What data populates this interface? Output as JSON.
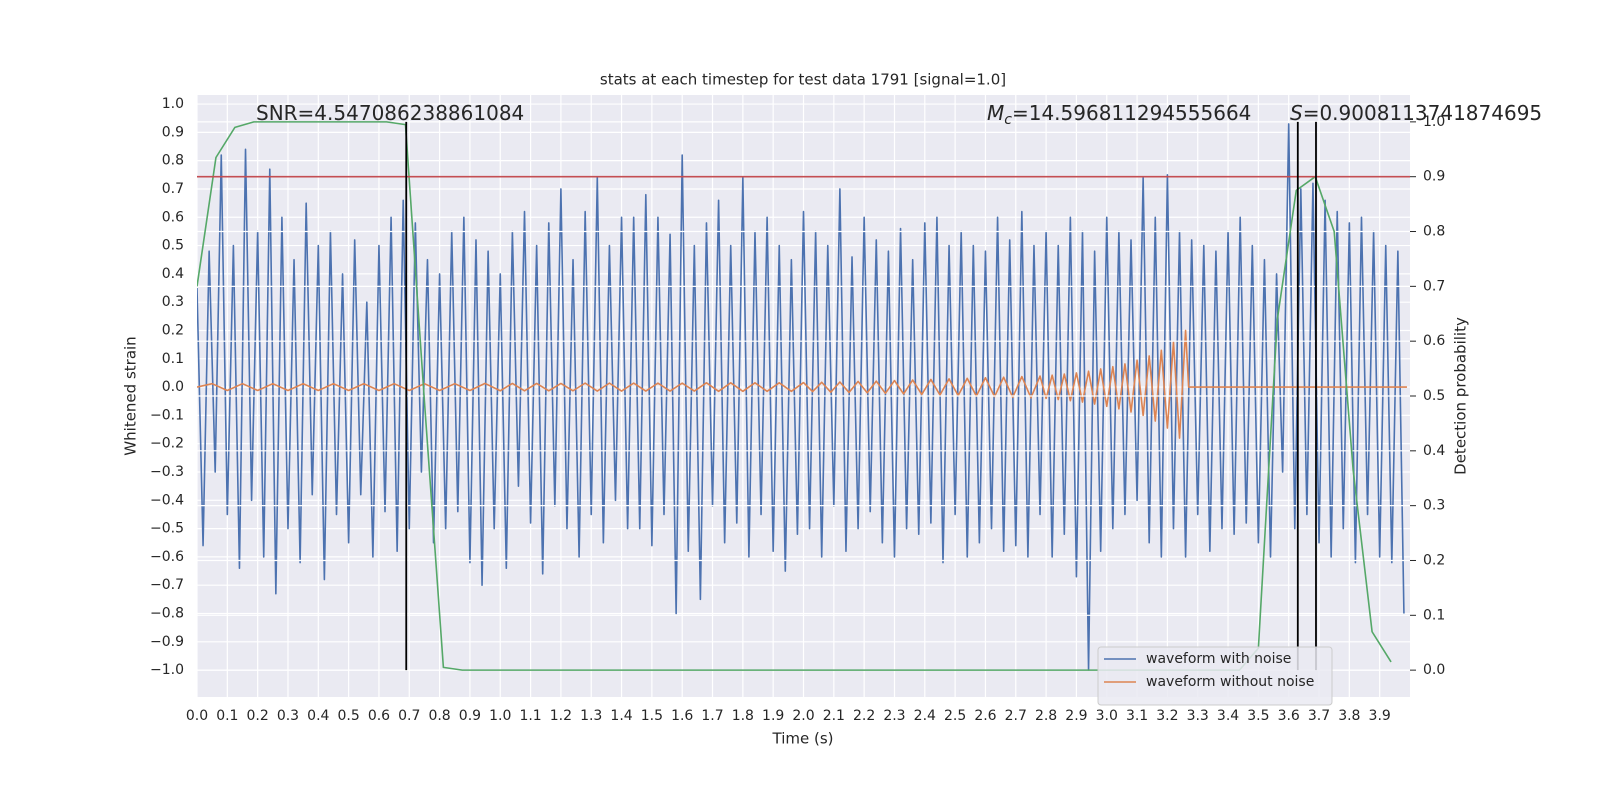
{
  "chart_data": {
    "type": "line",
    "title": "stats at each timestep for test data 1791 [signal=1.0]",
    "xlabel": "Time (s)",
    "ylabel": "Whitened strain",
    "y2label": "Detection probability",
    "xlim": [
      0,
      4.0
    ],
    "ylim": [
      -1.095,
      1.032
    ],
    "y2lim": [
      -0.049,
      1.049
    ],
    "grid": true,
    "legend": "lower right",
    "xticks": [
      {
        "value": 0,
        "label": "0.0"
      },
      {
        "value": 0.1,
        "label": "0.1"
      },
      {
        "value": 0.2,
        "label": "0.2"
      },
      {
        "value": 0.3,
        "label": "0.3"
      },
      {
        "value": 0.4,
        "label": "0.4"
      },
      {
        "value": 0.5,
        "label": "0.5"
      },
      {
        "value": 0.6,
        "label": "0.6"
      },
      {
        "value": 0.7,
        "label": "0.7"
      },
      {
        "value": 0.8,
        "label": "0.8"
      },
      {
        "value": 0.9,
        "label": "0.9"
      },
      {
        "value": 1,
        "label": "1.0"
      },
      {
        "value": 1.1,
        "label": "1.1"
      },
      {
        "value": 1.2,
        "label": "1.2"
      },
      {
        "value": 1.3,
        "label": "1.3"
      },
      {
        "value": 1.4,
        "label": "1.4"
      },
      {
        "value": 1.5,
        "label": "1.5"
      },
      {
        "value": 1.6,
        "label": "1.6"
      },
      {
        "value": 1.7,
        "label": "1.7"
      },
      {
        "value": 1.8,
        "label": "1.8"
      },
      {
        "value": 1.9,
        "label": "1.9"
      },
      {
        "value": 2,
        "label": "2.0"
      },
      {
        "value": 2.1,
        "label": "2.1"
      },
      {
        "value": 2.2,
        "label": "2.2"
      },
      {
        "value": 2.3,
        "label": "2.3"
      },
      {
        "value": 2.4,
        "label": "2.4"
      },
      {
        "value": 2.5,
        "label": "2.5"
      },
      {
        "value": 2.6,
        "label": "2.6"
      },
      {
        "value": 2.7,
        "label": "2.7"
      },
      {
        "value": 2.8,
        "label": "2.8"
      },
      {
        "value": 2.9,
        "label": "2.9"
      },
      {
        "value": 3,
        "label": "3.0"
      },
      {
        "value": 3.1,
        "label": "3.1"
      },
      {
        "value": 3.2,
        "label": "3.2"
      },
      {
        "value": 3.3,
        "label": "3.3"
      },
      {
        "value": 3.4,
        "label": "3.4"
      },
      {
        "value": 3.5,
        "label": "3.5"
      },
      {
        "value": 3.6,
        "label": "3.6"
      },
      {
        "value": 3.7,
        "label": "3.7"
      },
      {
        "value": 3.8,
        "label": "3.8"
      },
      {
        "value": 3.9,
        "label": "3.9"
      }
    ],
    "yticks": [
      {
        "value": -1,
        "label": "−1.0"
      },
      {
        "value": -0.9,
        "label": "−0.9"
      },
      {
        "value": -0.8,
        "label": "−0.8"
      },
      {
        "value": -0.7,
        "label": "−0.7"
      },
      {
        "value": -0.6,
        "label": "−0.6"
      },
      {
        "value": -0.5,
        "label": "−0.5"
      },
      {
        "value": -0.4,
        "label": "−0.4"
      },
      {
        "value": -0.3,
        "label": "−0.3"
      },
      {
        "value": -0.2,
        "label": "−0.2"
      },
      {
        "value": -0.1,
        "label": "−0.1"
      },
      {
        "value": 0,
        "label": "0.0"
      },
      {
        "value": 0.1,
        "label": "0.1"
      },
      {
        "value": 0.2,
        "label": "0.2"
      },
      {
        "value": 0.3,
        "label": "0.3"
      },
      {
        "value": 0.4,
        "label": "0.4"
      },
      {
        "value": 0.5,
        "label": "0.5"
      },
      {
        "value": 0.6,
        "label": "0.6"
      },
      {
        "value": 0.7,
        "label": "0.7"
      },
      {
        "value": 0.8,
        "label": "0.8"
      },
      {
        "value": 0.9,
        "label": "0.9"
      },
      {
        "value": 1,
        "label": "1.0"
      }
    ],
    "y2ticks": [
      {
        "value": 0,
        "label": "0.0"
      },
      {
        "value": 0.1,
        "label": "0.1"
      },
      {
        "value": 0.2,
        "label": "0.2"
      },
      {
        "value": 0.3,
        "label": "0.3"
      },
      {
        "value": 0.4,
        "label": "0.4"
      },
      {
        "value": 0.5,
        "label": "0.5"
      },
      {
        "value": 0.6,
        "label": "0.6"
      },
      {
        "value": 0.7,
        "label": "0.7"
      },
      {
        "value": 0.8,
        "label": "0.8"
      },
      {
        "value": 0.9,
        "label": "0.9"
      },
      {
        "value": 1,
        "label": "1.0"
      }
    ],
    "series": [
      {
        "name": "waveform with noise",
        "color": "#4c72b0",
        "x": [
          0,
          0.02,
          0.04,
          0.06,
          0.08,
          0.1,
          0.12,
          0.14,
          0.16,
          0.18,
          0.2,
          0.22,
          0.24,
          0.26,
          0.28,
          0.3,
          0.32,
          0.34,
          0.36,
          0.38,
          0.4,
          0.42,
          0.44,
          0.46,
          0.48,
          0.5,
          0.52,
          0.54,
          0.56,
          0.58,
          0.6,
          0.62,
          0.64,
          0.66,
          0.68,
          0.7,
          0.72,
          0.74,
          0.76,
          0.78,
          0.8,
          0.82,
          0.84,
          0.86,
          0.88,
          0.9,
          0.92,
          0.94,
          0.96,
          0.98,
          1,
          1.02,
          1.04,
          1.06,
          1.08,
          1.1,
          1.12,
          1.14,
          1.16,
          1.18,
          1.2,
          1.22,
          1.24,
          1.26,
          1.28,
          1.3,
          1.32,
          1.34,
          1.36,
          1.38,
          1.4,
          1.42,
          1.44,
          1.46,
          1.48,
          1.5,
          1.52,
          1.54,
          1.56,
          1.58,
          1.6,
          1.62,
          1.64,
          1.66,
          1.68,
          1.7,
          1.72,
          1.74,
          1.76,
          1.78,
          1.8,
          1.82,
          1.84,
          1.86,
          1.88,
          1.9,
          1.92,
          1.94,
          1.96,
          1.98,
          2,
          2.02,
          2.04,
          2.06,
          2.08,
          2.1,
          2.12,
          2.14,
          2.16,
          2.18,
          2.2,
          2.22,
          2.24,
          2.26,
          2.28,
          2.3,
          2.32,
          2.34,
          2.36,
          2.38,
          2.4,
          2.42,
          2.44,
          2.46,
          2.48,
          2.5,
          2.52,
          2.54,
          2.56,
          2.58,
          2.6,
          2.62,
          2.64,
          2.66,
          2.68,
          2.7,
          2.72,
          2.74,
          2.76,
          2.78,
          2.8,
          2.82,
          2.84,
          2.86,
          2.88,
          2.9,
          2.92,
          2.94,
          2.96,
          2.98,
          3,
          3.02,
          3.04,
          3.06,
          3.08,
          3.1,
          3.12,
          3.14,
          3.16,
          3.18,
          3.2,
          3.22,
          3.24,
          3.26,
          3.28,
          3.3,
          3.32,
          3.34,
          3.36,
          3.38,
          3.4,
          3.42,
          3.44,
          3.46,
          3.48,
          3.5,
          3.52,
          3.54,
          3.56,
          3.58,
          3.6,
          3.62,
          3.64,
          3.66,
          3.68,
          3.7,
          3.72,
          3.74,
          3.76,
          3.78,
          3.8,
          3.82,
          3.84,
          3.86,
          3.88,
          3.9,
          3.92,
          3.94,
          3.96,
          3.98
        ],
        "values": [
          0.35,
          -0.56,
          0.48,
          -0.3,
          0.82,
          -0.45,
          0.5,
          -0.64,
          0.84,
          -0.4,
          0.55,
          -0.6,
          0.77,
          -0.73,
          0.6,
          -0.5,
          0.45,
          -0.62,
          0.65,
          -0.38,
          0.5,
          -0.68,
          0.55,
          -0.45,
          0.4,
          -0.55,
          0.52,
          -0.38,
          0.3,
          -0.6,
          0.5,
          -0.44,
          0.6,
          -0.58,
          0.66,
          -0.5,
          0.58,
          -0.3,
          0.45,
          -0.55,
          0.4,
          -0.5,
          0.55,
          -0.44,
          0.6,
          -0.62,
          0.52,
          -0.7,
          0.48,
          -0.5,
          0.4,
          -0.64,
          0.55,
          -0.35,
          0.62,
          -0.48,
          0.5,
          -0.66,
          0.58,
          -0.42,
          0.7,
          -0.5,
          0.45,
          -0.6,
          0.62,
          -0.45,
          0.74,
          -0.55,
          0.5,
          -0.4,
          0.6,
          -0.5,
          0.6,
          -0.5,
          0.68,
          -0.56,
          0.6,
          -0.45,
          0.54,
          -0.8,
          0.82,
          -0.58,
          0.5,
          -0.75,
          0.58,
          -0.42,
          0.66,
          -0.55,
          0.5,
          -0.48,
          0.74,
          -0.6,
          0.55,
          -0.45,
          0.6,
          -0.58,
          0.5,
          -0.65,
          0.45,
          -0.52,
          0.62,
          -0.5,
          0.55,
          -0.6,
          0.5,
          -0.42,
          0.7,
          -0.58,
          0.46,
          -0.5,
          0.6,
          -0.44,
          0.52,
          -0.55,
          0.48,
          -0.6,
          0.56,
          -0.5,
          0.45,
          -0.52,
          0.58,
          -0.48,
          0.6,
          -0.62,
          0.5,
          -0.45,
          0.55,
          -0.6,
          0.5,
          -0.55,
          0.48,
          -0.5,
          0.6,
          -0.58,
          0.52,
          -0.56,
          0.62,
          -0.6,
          0.5,
          -0.45,
          0.55,
          -0.6,
          0.5,
          -0.52,
          0.6,
          -0.67,
          0.55,
          -1.0,
          0.48,
          -0.58,
          0.6,
          -0.5,
          0.55,
          -0.45,
          0.52,
          -0.4,
          0.74,
          -0.55,
          0.6,
          -0.6,
          0.75,
          -0.5,
          0.55,
          -0.6,
          0.52,
          -0.45,
          0.5,
          -0.58,
          0.48,
          -0.5,
          0.55,
          -0.52,
          0.6,
          -0.48,
          0.5,
          -0.55,
          0.45,
          -0.6,
          0.4,
          -0.3,
          0.93,
          -0.5,
          0.7,
          -0.45,
          0.72,
          -0.55,
          0.66,
          -0.6,
          0.62,
          -0.5,
          0.58,
          -0.62,
          0.6,
          -0.45,
          0.55,
          -0.6,
          0.5,
          -0.62,
          0.48,
          -0.8
        ]
      },
      {
        "name": "waveform without noise",
        "color": "#dd8452",
        "x": [
          0,
          0.05,
          0.1,
          0.15,
          0.2,
          0.25,
          0.3,
          0.35,
          0.4,
          0.45,
          0.5,
          0.55,
          0.6,
          0.65,
          0.7,
          0.75,
          0.8,
          0.85,
          0.9,
          0.95,
          1,
          1.04,
          1.08,
          1.12,
          1.16,
          1.2,
          1.24,
          1.28,
          1.32,
          1.36,
          1.4,
          1.44,
          1.48,
          1.52,
          1.56,
          1.6,
          1.64,
          1.68,
          1.72,
          1.76,
          1.8,
          1.84,
          1.88,
          1.92,
          1.96,
          2,
          2.03,
          2.06,
          2.09,
          2.12,
          2.15,
          2.18,
          2.21,
          2.24,
          2.27,
          2.3,
          2.33,
          2.36,
          2.39,
          2.42,
          2.45,
          2.48,
          2.51,
          2.54,
          2.57,
          2.6,
          2.63,
          2.66,
          2.69,
          2.72,
          2.75,
          2.78,
          2.8,
          2.82,
          2.84,
          2.86,
          2.88,
          2.9,
          2.92,
          2.94,
          2.96,
          2.98,
          3,
          3.02,
          3.04,
          3.06,
          3.08,
          3.1,
          3.12,
          3.14,
          3.16,
          3.18,
          3.2,
          3.22,
          3.24,
          3.26,
          3.27,
          3.99
        ],
        "values": [
          0,
          0.012,
          -0.012,
          0.012,
          -0.012,
          0.012,
          -0.012,
          0.012,
          -0.012,
          0.012,
          -0.012,
          0.012,
          -0.012,
          0.012,
          -0.012,
          0.012,
          -0.012,
          0.012,
          -0.012,
          0.013,
          -0.013,
          0.013,
          -0.013,
          0.013,
          -0.013,
          0.013,
          -0.013,
          0.014,
          -0.014,
          0.014,
          -0.014,
          0.014,
          -0.014,
          0.014,
          -0.014,
          0.014,
          -0.014,
          0.015,
          -0.015,
          0.015,
          -0.015,
          0.015,
          -0.015,
          0.015,
          -0.015,
          0.016,
          -0.016,
          0.017,
          -0.018,
          0.018,
          -0.019,
          0.02,
          -0.02,
          0.021,
          -0.022,
          0.023,
          -0.024,
          0.025,
          -0.026,
          0.027,
          -0.028,
          0.029,
          -0.03,
          0.031,
          -0.032,
          0.033,
          -0.034,
          0.035,
          -0.036,
          0.037,
          -0.038,
          0.039,
          -0.04,
          0.042,
          -0.044,
          0.046,
          -0.048,
          0.05,
          -0.053,
          0.056,
          -0.06,
          0.064,
          -0.068,
          0.072,
          -0.077,
          0.082,
          -0.088,
          0.095,
          -0.1,
          0.11,
          -0.12,
          0.13,
          -0.145,
          0.16,
          -0.18,
          0.2,
          0,
          0
        ]
      },
      {
        "color": "#55a868",
        "axis": "y2",
        "x": [
          0,
          0.0625,
          0.125,
          0.1875,
          0.25,
          0.3125,
          0.375,
          0.4375,
          0.5,
          0.5625,
          0.625,
          0.6875,
          0.75,
          0.8125,
          0.875,
          0.9375,
          1,
          1.0625,
          1.125,
          1.1875,
          1.25,
          1.3125,
          1.375,
          1.4375,
          1.5,
          1.5625,
          1.625,
          1.6875,
          1.75,
          1.8125,
          1.875,
          1.9375,
          2,
          2.0625,
          2.125,
          2.1875,
          2.25,
          2.3125,
          2.375,
          2.4375,
          2.5,
          2.5625,
          2.625,
          2.6875,
          2.75,
          2.8125,
          2.875,
          2.9375,
          3,
          3.0625,
          3.125,
          3.1875,
          3.25,
          3.3125,
          3.375,
          3.4375,
          3.5,
          3.5625,
          3.625,
          3.6875,
          3.75,
          3.8125,
          3.875,
          3.9375
        ],
        "values": [
          0.7,
          0.935,
          0.99,
          1.0,
          1.0,
          1.0,
          1.0,
          1.0,
          1.0,
          1.0,
          1.0,
          0.995,
          0.49,
          0.005,
          0,
          0,
          0,
          0,
          0,
          0,
          0,
          0,
          0,
          0,
          0,
          0,
          0,
          0,
          0,
          0,
          0,
          0,
          0,
          0,
          0,
          0,
          0,
          0,
          0,
          0,
          0,
          0,
          0,
          0,
          0,
          0,
          0,
          0,
          0,
          0,
          0,
          0,
          0,
          0,
          0,
          0,
          0.04,
          0.64,
          0.875,
          0.9,
          0.8,
          0.365,
          0.07,
          0.015
        ]
      }
    ],
    "hlines": [
      {
        "value": 0.9,
        "axis": "y2",
        "color": "#c44e52"
      }
    ],
    "vlines": {
      "x": [
        0.69,
        3.63,
        3.69
      ],
      "ymin": 0,
      "ymax": 1,
      "axis": "y2",
      "color": "#000000"
    },
    "annotations": [
      {
        "text": "SNR=4.547086238861084"
      },
      {
        "symbol": "M",
        "subscript": "c",
        "text": "=14.596811294555664"
      },
      {
        "symbol": "S",
        "text": "=0.9008113741874695"
      }
    ]
  }
}
